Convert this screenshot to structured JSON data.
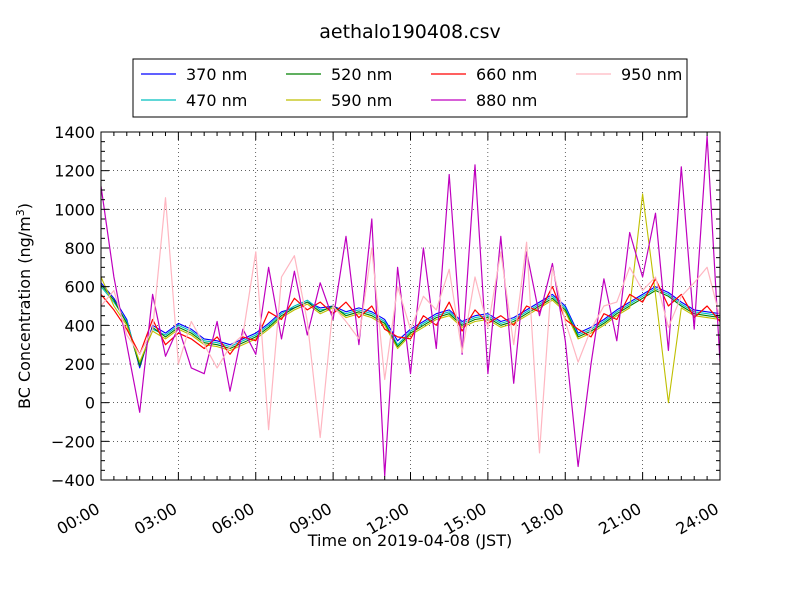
{
  "chart_data": {
    "type": "line",
    "title": "aethalo190408.csv",
    "xlabel": "Time on 2019-04-08 (JST)",
    "ylabel_main": "BC Concentration (ng/m",
    "ylabel_sup": "3",
    "ylabel_close": ")",
    "x_unit": "hours",
    "xlim": [
      0,
      24
    ],
    "ylim": [
      -400,
      1400
    ],
    "x_ticks": [
      0,
      3,
      6,
      9,
      12,
      15,
      18,
      21,
      24
    ],
    "x_tick_labels": [
      "00:00",
      "03:00",
      "06:00",
      "09:00",
      "12:00",
      "15:00",
      "18:00",
      "21:00",
      "24:00"
    ],
    "y_ticks": [
      -400,
      -200,
      0,
      200,
      400,
      600,
      800,
      1000,
      1200,
      1400
    ],
    "y_tick_labels": [
      "−400",
      "−200",
      "0",
      "200",
      "400",
      "600",
      "800",
      "1000",
      "1200",
      "1400"
    ],
    "grid": true,
    "legend_position": "top-center",
    "x": [
      0,
      0.5,
      1,
      1.5,
      2,
      2.5,
      3,
      3.5,
      4,
      4.5,
      5,
      5.5,
      6,
      6.5,
      7,
      7.5,
      8,
      8.5,
      9,
      9.5,
      10,
      10.5,
      11,
      11.5,
      12,
      12.5,
      13,
      13.5,
      14,
      14.5,
      15,
      15.5,
      16,
      16.5,
      17,
      17.5,
      18,
      18.5,
      19,
      19.5,
      20,
      20.5,
      21,
      21.5,
      22,
      22.5,
      23,
      23.5,
      24
    ],
    "series": [
      {
        "name": "370 nm",
        "color": "#0000ff",
        "width": 1.1,
        "values": [
          620,
          540,
          430,
          180,
          400,
          360,
          410,
          380,
          330,
          320,
          300,
          330,
          360,
          410,
          470,
          490,
          520,
          490,
          500,
          470,
          490,
          470,
          430,
          320,
          380,
          420,
          460,
          480,
          420,
          450,
          460,
          420,
          440,
          480,
          520,
          560,
          500,
          360,
          390,
          430,
          480,
          520,
          560,
          600,
          570,
          520,
          480,
          470,
          460
        ]
      },
      {
        "name": "470 nm",
        "color": "#00bfbf",
        "width": 1.1,
        "values": [
          600,
          520,
          420,
          200,
          380,
          350,
          400,
          370,
          320,
          310,
          290,
          320,
          350,
          400,
          460,
          500,
          530,
          480,
          490,
          460,
          480,
          460,
          420,
          300,
          370,
          410,
          450,
          470,
          410,
          440,
          450,
          410,
          430,
          470,
          510,
          550,
          490,
          350,
          380,
          420,
          470,
          510,
          550,
          590,
          560,
          510,
          470,
          460,
          450
        ]
      },
      {
        "name": "520 nm",
        "color": "#008000",
        "width": 1.1,
        "values": [
          610,
          530,
          410,
          190,
          390,
          340,
          390,
          360,
          310,
          300,
          280,
          310,
          340,
          390,
          450,
          490,
          520,
          470,
          500,
          450,
          470,
          450,
          410,
          290,
          360,
          400,
          440,
          460,
          400,
          430,
          440,
          400,
          420,
          460,
          500,
          540,
          480,
          340,
          370,
          410,
          460,
          500,
          540,
          580,
          550,
          500,
          460,
          450,
          440
        ]
      },
      {
        "name": "590 nm",
        "color": "#bfbf00",
        "width": 1.1,
        "values": [
          650,
          500,
          400,
          210,
          370,
          330,
          380,
          350,
          300,
          290,
          270,
          300,
          330,
          380,
          440,
          480,
          510,
          460,
          490,
          440,
          460,
          440,
          400,
          280,
          350,
          390,
          430,
          450,
          390,
          420,
          430,
          390,
          410,
          450,
          490,
          530,
          470,
          330,
          360,
          400,
          450,
          490,
          1080,
          560,
          0,
          490,
          450,
          440,
          430
        ]
      },
      {
        "name": "660 nm",
        "color": "#ff0000",
        "width": 1.2,
        "values": [
          560,
          480,
          380,
          250,
          430,
          300,
          360,
          330,
          280,
          340,
          250,
          340,
          320,
          470,
          430,
          540,
          480,
          520,
          460,
          520,
          440,
          500,
          380,
          340,
          330,
          450,
          400,
          520,
          370,
          480,
          410,
          450,
          400,
          500,
          470,
          600,
          430,
          380,
          340,
          460,
          430,
          560,
          520,
          640,
          500,
          560,
          440,
          500,
          420
        ]
      },
      {
        "name": "880 nm",
        "color": "#bf00bf",
        "width": 1.2,
        "values": [
          1120,
          650,
          300,
          -50,
          560,
          240,
          390,
          180,
          150,
          420,
          60,
          380,
          250,
          700,
          330,
          680,
          350,
          620,
          430,
          860,
          300,
          950,
          -380,
          700,
          150,
          800,
          280,
          1180,
          250,
          1230,
          150,
          860,
          100,
          780,
          450,
          720,
          320,
          -330,
          200,
          640,
          320,
          880,
          650,
          980,
          270,
          1220,
          380,
          1380,
          210
        ]
      },
      {
        "name": "950 nm",
        "color": "#ffb6c1",
        "width": 1.2,
        "values": [
          500,
          580,
          350,
          250,
          380,
          1060,
          200,
          420,
          300,
          180,
          290,
          350,
          780,
          -140,
          650,
          760,
          420,
          -180,
          500,
          420,
          330,
          800,
          120,
          600,
          380,
          550,
          480,
          690,
          260,
          650,
          390,
          780,
          300,
          830,
          -260,
          700,
          420,
          210,
          380,
          500,
          520,
          700,
          580,
          650,
          390,
          550,
          620,
          700,
          440
        ]
      }
    ]
  }
}
